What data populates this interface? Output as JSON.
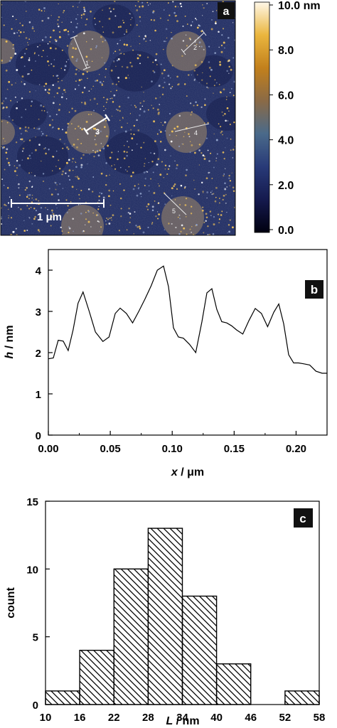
{
  "chart_data": [
    {
      "panel": "a",
      "type": "heatmap",
      "scale_bar": {
        "label": "1 μm",
        "value_um": 1
      },
      "line_labels": [
        "1",
        "2",
        "3",
        "4",
        "5"
      ],
      "colorbar": {
        "ticks": [
          "10.0 nm",
          "8.0",
          "6.0",
          "4.0",
          "2.0",
          "0.0"
        ],
        "tick_values": [
          10,
          8,
          6,
          4,
          2,
          0
        ],
        "range": [
          0,
          10
        ],
        "colors": [
          "#000010",
          "#151a4e",
          "#283a78",
          "#4a6a8a",
          "#8a6a46",
          "#c2801c",
          "#eab63e",
          "#fff8e8"
        ]
      },
      "colors": {
        "background": "#1e2b63",
        "domain": "#a38a68",
        "speckle": "#f0c25a"
      }
    },
    {
      "panel": "b",
      "type": "line",
      "xlabel_var": "x",
      "xlabel_unit": " / μm",
      "ylabel_var": "h",
      "ylabel_unit": " / nm",
      "xlim": [
        0,
        0.225
      ],
      "ylim": [
        0,
        4.5
      ],
      "xticks": [
        "0.00",
        "0.05",
        "0.10",
        "0.15",
        "0.20"
      ],
      "xtick_values": [
        0,
        0.05,
        0.1,
        0.15,
        0.2
      ],
      "yticks": [
        "0",
        "1",
        "2",
        "3",
        "4"
      ],
      "ytick_values": [
        0,
        1,
        2,
        3,
        4
      ],
      "series": [
        {
          "x": [
            0,
            0.004,
            0.008,
            0.012,
            0.016,
            0.02,
            0.024,
            0.028,
            0.033,
            0.038,
            0.044,
            0.049,
            0.054,
            0.058,
            0.063,
            0.068,
            0.073,
            0.078,
            0.083,
            0.088,
            0.093,
            0.097,
            0.101,
            0.105,
            0.109,
            0.114,
            0.119,
            0.124,
            0.128,
            0.132,
            0.136,
            0.14,
            0.144,
            0.148,
            0.152,
            0.157,
            0.162,
            0.167,
            0.172,
            0.177,
            0.182,
            0.186,
            0.19,
            0.194,
            0.198,
            0.202,
            0.206,
            0.211,
            0.216,
            0.221,
            0.225
          ],
          "y": [
            1.85,
            1.87,
            2.3,
            2.28,
            2.05,
            2.55,
            3.2,
            3.47,
            3.0,
            2.5,
            2.27,
            2.38,
            2.95,
            3.08,
            2.95,
            2.72,
            3.0,
            3.3,
            3.62,
            4.0,
            4.1,
            3.6,
            2.6,
            2.38,
            2.35,
            2.2,
            2.0,
            2.75,
            3.45,
            3.55,
            3.05,
            2.75,
            2.72,
            2.65,
            2.55,
            2.45,
            2.78,
            3.07,
            2.95,
            2.63,
            2.98,
            3.18,
            2.7,
            1.95,
            1.75,
            1.75,
            1.73,
            1.7,
            1.55,
            1.5,
            1.5
          ]
        }
      ]
    },
    {
      "panel": "c",
      "type": "bar",
      "xlabel_var": "L",
      "xlabel_unit": " / nm",
      "ylabel": "count",
      "bin_edges": [
        10,
        16,
        22,
        28,
        34,
        40,
        46,
        52,
        58
      ],
      "values": [
        1,
        4,
        10,
        13,
        8,
        3,
        0,
        1
      ],
      "xlim": [
        10,
        58
      ],
      "ylim": [
        0,
        15
      ],
      "xticks": [
        "10",
        "16",
        "22",
        "28",
        "34",
        "40",
        "46",
        "52",
        "58"
      ],
      "xtick_values": [
        10,
        16,
        22,
        28,
        34,
        40,
        46,
        52,
        58
      ],
      "yticks": [
        "0",
        "5",
        "10",
        "15"
      ],
      "ytick_values": [
        0,
        5,
        10,
        15
      ]
    }
  ]
}
